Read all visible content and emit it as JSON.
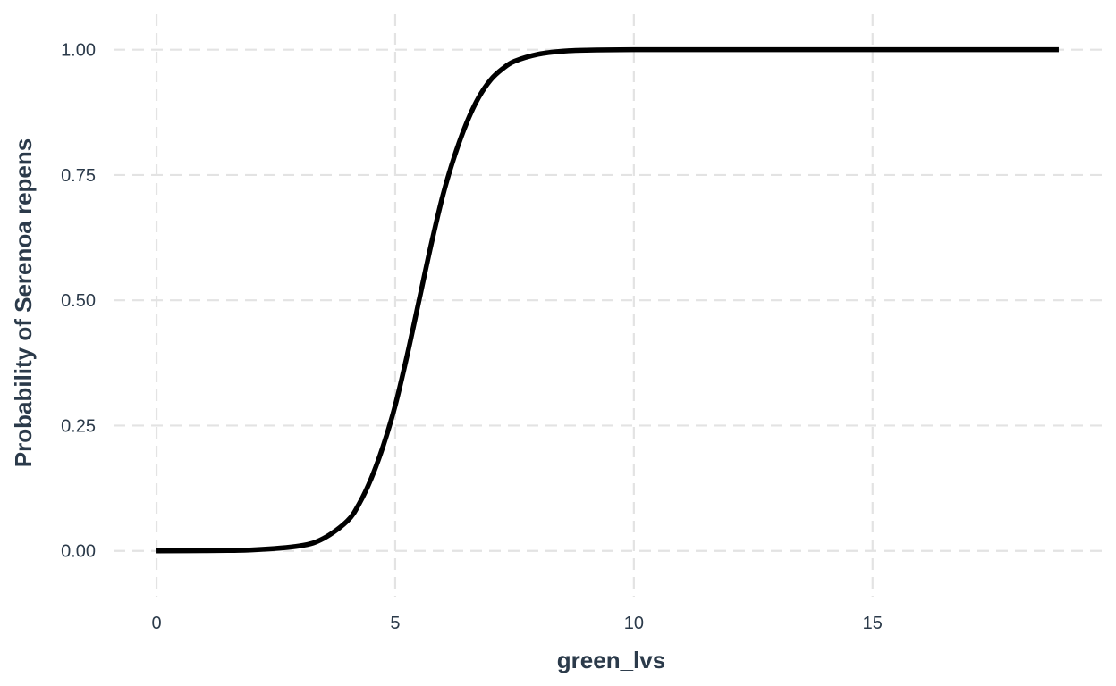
{
  "chart_data": {
    "type": "line",
    "title": "",
    "xlabel": "green_lvs",
    "ylabel": "Probability of Serenoa repens",
    "xlim": [
      -0.9,
      19.8
    ],
    "ylim": [
      -0.07,
      1.06
    ],
    "x_ticks": [
      0,
      5,
      10,
      15
    ],
    "x_tick_labels": [
      "0",
      "5",
      "10",
      "15"
    ],
    "y_ticks": [
      0,
      0.25,
      0.5,
      0.75,
      1
    ],
    "y_tick_labels": [
      "0.00",
      "0.25",
      "0.50",
      "0.75",
      "1.00"
    ],
    "grid": true,
    "legend": "none",
    "series": [
      {
        "color": "#000000",
        "x": [
          0,
          1,
          2,
          3,
          3.5,
          4,
          4.25,
          4.5,
          4.75,
          5,
          5.25,
          5.5,
          5.75,
          6,
          6.25,
          6.5,
          6.75,
          7,
          7.25,
          7.5,
          8,
          8.5,
          9,
          10,
          12,
          15,
          18.9
        ],
        "y": [
          0.0,
          0.0005,
          0.002,
          0.01,
          0.025,
          0.06,
          0.095,
          0.145,
          0.21,
          0.29,
          0.39,
          0.5,
          0.61,
          0.71,
          0.79,
          0.855,
          0.905,
          0.94,
          0.962,
          0.977,
          0.991,
          0.997,
          0.999,
          1.0,
          1.0,
          1.0,
          1.0
        ]
      }
    ]
  }
}
